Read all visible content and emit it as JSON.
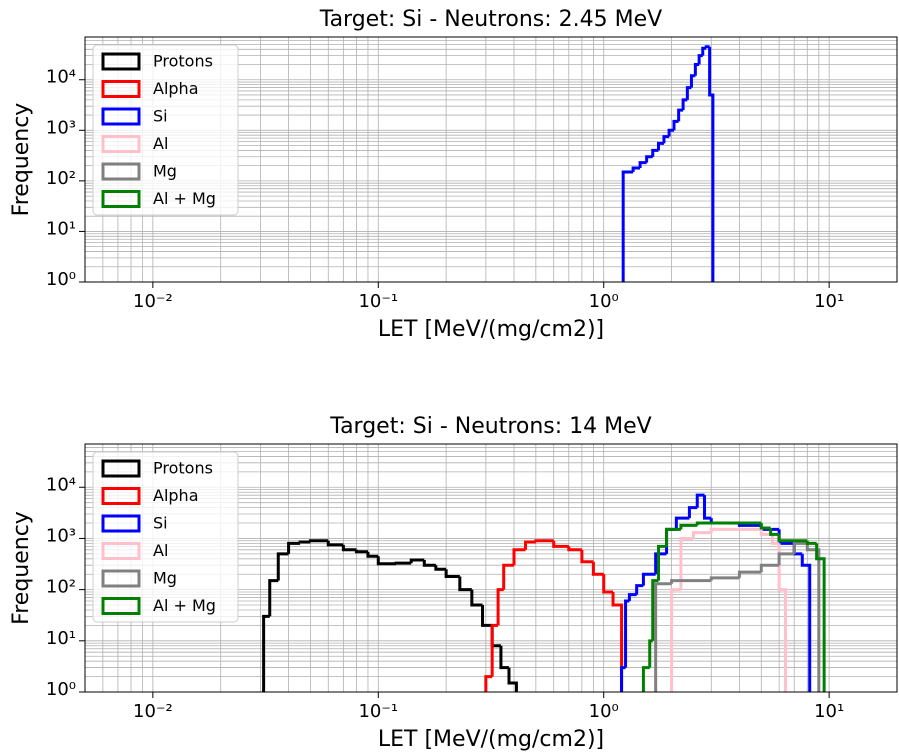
{
  "chart_data": [
    {
      "type": "histogram",
      "title": "Target: Si - Neutrons: 2.45 MeV",
      "xlabel": "LET [MeV/(mg/cm2)]",
      "ylabel": "Frequency",
      "xscale": "log",
      "yscale": "log",
      "grid": "both",
      "legend": "upper left",
      "xlim": [
        0.005,
        20
      ],
      "ylim": [
        1,
        70000
      ],
      "xticks": [
        {
          "value": 0.01,
          "label": "10⁻²"
        },
        {
          "value": 0.1,
          "label": "10⁻¹"
        },
        {
          "value": 1,
          "label": "10⁰"
        },
        {
          "value": 10,
          "label": "10¹"
        }
      ],
      "yticks": [
        {
          "value": 1,
          "label": "10⁰"
        },
        {
          "value": 10,
          "label": "10¹"
        },
        {
          "value": 100,
          "label": "10²"
        },
        {
          "value": 1000,
          "label": "10³"
        },
        {
          "value": 10000,
          "label": "10⁴"
        }
      ],
      "series": [
        {
          "name": "Protons",
          "color": "#000000"
        },
        {
          "name": "Alpha",
          "color": "#ff0000"
        },
        {
          "name": "Si",
          "color": "#0000ff",
          "bins": [
            1.22,
            1.35,
            1.45,
            1.55,
            1.65,
            1.75,
            1.85,
            1.95,
            2.05,
            2.15,
            2.25,
            2.35,
            2.45,
            2.55,
            2.65,
            2.75,
            2.85,
            2.95,
            3.05
          ],
          "values": [
            150,
            180,
            230,
            300,
            400,
            550,
            750,
            1000,
            1500,
            2500,
            4000,
            7000,
            12000,
            20000,
            30000,
            42000,
            45000,
            5000
          ]
        },
        {
          "name": "Al",
          "color": "#ffc0cb"
        },
        {
          "name": "Mg",
          "color": "#808080"
        },
        {
          "name": "Al + Mg",
          "color": "#008000"
        }
      ]
    },
    {
      "type": "histogram",
      "title": "Target: Si - Neutrons: 14 MeV",
      "xlabel": "LET [MeV/(mg/cm2)]",
      "ylabel": "Frequency",
      "xscale": "log",
      "yscale": "log",
      "grid": "both",
      "legend": "upper left",
      "xlim": [
        0.005,
        20
      ],
      "ylim": [
        1,
        70000
      ],
      "xticks": [
        {
          "value": 0.01,
          "label": "10⁻²"
        },
        {
          "value": 0.1,
          "label": "10⁻¹"
        },
        {
          "value": 1,
          "label": "10⁰"
        },
        {
          "value": 10,
          "label": "10¹"
        }
      ],
      "yticks": [
        {
          "value": 1,
          "label": "10⁰"
        },
        {
          "value": 10,
          "label": "10¹"
        },
        {
          "value": 100,
          "label": "10²"
        },
        {
          "value": 1000,
          "label": "10³"
        },
        {
          "value": 10000,
          "label": "10⁴"
        }
      ],
      "series": [
        {
          "name": "Protons",
          "color": "#000000",
          "bins": [
            0.031,
            0.033,
            0.036,
            0.04,
            0.045,
            0.05,
            0.06,
            0.07,
            0.08,
            0.09,
            0.1,
            0.12,
            0.14,
            0.16,
            0.18,
            0.2,
            0.23,
            0.26,
            0.29,
            0.32,
            0.35,
            0.38,
            0.41
          ],
          "values": [
            30,
            150,
            500,
            800,
            850,
            900,
            750,
            600,
            550,
            450,
            320,
            330,
            380,
            300,
            250,
            180,
            100,
            50,
            20,
            8,
            3,
            1.5
          ]
        },
        {
          "name": "Alpha",
          "color": "#ff0000",
          "bins": [
            0.3,
            0.32,
            0.34,
            0.36,
            0.4,
            0.45,
            0.5,
            0.6,
            0.7,
            0.8,
            0.9,
            1.0,
            1.1,
            1.2
          ],
          "values": [
            2,
            20,
            100,
            300,
            600,
            850,
            900,
            700,
            600,
            350,
            200,
            90,
            50
          ]
        },
        {
          "name": "Si",
          "color": "#0000ff",
          "bins": [
            1.2,
            1.25,
            1.3,
            1.4,
            1.5,
            1.7,
            1.9,
            2.1,
            2.4,
            2.6,
            2.8,
            3.0,
            3.5,
            4.0,
            5.0,
            6.0,
            7.0,
            7.6,
            8.2
          ],
          "values": [
            3,
            60,
            80,
            120,
            200,
            500,
            1500,
            2500,
            4000,
            7000,
            2500,
            2000,
            2000,
            1800,
            1500,
            800,
            500,
            300
          ]
        },
        {
          "name": "Al",
          "color": "#ffc0cb",
          "bins": [
            2.0,
            2.2,
            2.5,
            3,
            4,
            5,
            5.6,
            6.0,
            6.4
          ],
          "values": [
            100,
            1000,
            1300,
            1500,
            1500,
            1200,
            800,
            100
          ]
        },
        {
          "name": "Mg",
          "color": "#808080",
          "bins": [
            1.7,
            2,
            3,
            4,
            5,
            6,
            7,
            8,
            9
          ],
          "values": [
            130,
            150,
            170,
            220,
            300,
            500,
            800,
            600
          ]
        },
        {
          "name": "Al + Mg",
          "color": "#008000",
          "bins": [
            1.5,
            1.6,
            1.65,
            1.75,
            1.9,
            2.2,
            2.6,
            3,
            4,
            5,
            5.5,
            6,
            7,
            8,
            8.8,
            9.5
          ],
          "values": [
            3,
            10,
            150,
            700,
            1500,
            1800,
            2000,
            2000,
            2000,
            1600,
            1200,
            900,
            900,
            800,
            400
          ]
        }
      ]
    }
  ]
}
